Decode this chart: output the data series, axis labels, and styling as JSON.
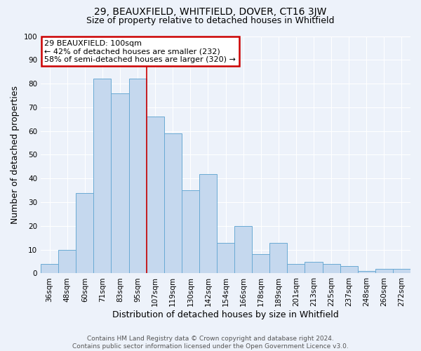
{
  "title": "29, BEAUXFIELD, WHITFIELD, DOVER, CT16 3JW",
  "subtitle": "Size of property relative to detached houses in Whitfield",
  "xlabel": "Distribution of detached houses by size in Whitfield",
  "ylabel": "Number of detached properties",
  "categories": [
    "36sqm",
    "48sqm",
    "60sqm",
    "71sqm",
    "83sqm",
    "95sqm",
    "107sqm",
    "119sqm",
    "130sqm",
    "142sqm",
    "154sqm",
    "166sqm",
    "178sqm",
    "189sqm",
    "201sqm",
    "213sqm",
    "225sqm",
    "237sqm",
    "248sqm",
    "260sqm",
    "272sqm"
  ],
  "values": [
    4,
    10,
    34,
    82,
    76,
    82,
    66,
    59,
    35,
    42,
    13,
    20,
    8,
    13,
    4,
    5,
    4,
    3,
    1,
    2,
    2
  ],
  "bar_color": "#c5d8ee",
  "bar_edge_color": "#6aaad4",
  "marker_index": 5.5,
  "annotation_title": "29 BEAUXFIELD: 100sqm",
  "annotation_line1": "← 42% of detached houses are smaller (232)",
  "annotation_line2": "58% of semi-detached houses are larger (320) →",
  "annotation_box_color": "#ffffff",
  "annotation_box_edge": "#cc0000",
  "marker_line_color": "#cc0000",
  "ylim": [
    0,
    100
  ],
  "footer1": "Contains HM Land Registry data © Crown copyright and database right 2024.",
  "footer2": "Contains public sector information licensed under the Open Government Licence v3.0.",
  "bg_color": "#edf2fa",
  "plot_bg_color": "#edf2fa",
  "grid_color": "#ffffff",
  "title_fontsize": 10,
  "subtitle_fontsize": 9,
  "axis_label_fontsize": 9,
  "tick_fontsize": 7.5,
  "footer_fontsize": 6.5,
  "annotation_fontsize": 8
}
